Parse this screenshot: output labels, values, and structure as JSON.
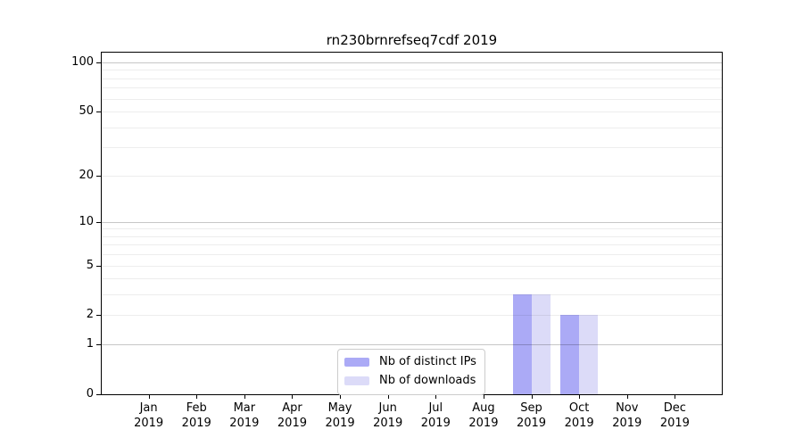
{
  "chart_data": {
    "type": "bar",
    "title": "rn230brnrefseq7cdf 2019",
    "x_months": [
      "Jan",
      "Feb",
      "Mar",
      "Apr",
      "May",
      "Jun",
      "Jul",
      "Aug",
      "Sep",
      "Oct",
      "Nov",
      "Dec"
    ],
    "x_year": "2019",
    "series": [
      {
        "name": "Nb of distinct IPs",
        "color": "#abaaf6",
        "values": [
          0,
          0,
          0,
          0,
          0,
          0,
          0,
          0,
          3,
          2,
          0,
          0
        ]
      },
      {
        "name": "Nb of downloads",
        "color": "#dcdbf8",
        "values": [
          0,
          0,
          0,
          0,
          0,
          0,
          0,
          0,
          3,
          2,
          0,
          0
        ]
      }
    ],
    "yaxis": {
      "scale": "log1p",
      "ylim": [
        0,
        100
      ],
      "ticks": [
        0,
        1,
        2,
        5,
        10,
        20,
        50,
        100
      ],
      "major_gridlines": [
        1,
        10,
        100
      ],
      "minor_gridlines": [
        2,
        3,
        4,
        5,
        6,
        7,
        8,
        9,
        20,
        30,
        40,
        50,
        60,
        70,
        80,
        90
      ]
    },
    "legend": {
      "position": "inside-bottom-center"
    },
    "grid": true,
    "colors": {
      "axis": "#000000",
      "major_gridline": "#c7c7c7",
      "minor_gridline": "#ededed",
      "background": "#ffffff"
    }
  }
}
